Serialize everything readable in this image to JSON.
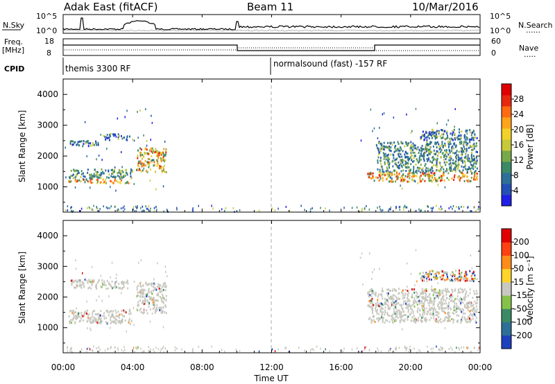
{
  "header": {
    "station": "Adak East (fitACF)",
    "beam": "Beam 11",
    "date": "10/Mar/2016"
  },
  "side_labels": {
    "nsky": "N.Sky",
    "freq": "Freq.",
    "mhz": "[MHz]",
    "cpid": "CPID",
    "nsearch": "N.Search",
    "nave": "Nave",
    "dots": "......",
    "nave_dots": "....."
  },
  "top_panel": {
    "left_ticks": [
      "10^5",
      "10^0"
    ],
    "right_ticks": [
      "10^5",
      "10^0"
    ]
  },
  "freq_panel": {
    "left_ticks": [
      "18",
      "8"
    ],
    "right_ticks": [
      "60",
      "0"
    ]
  },
  "cpid_panel": {
    "program1": "themis 3300 RF",
    "program2": "normalsound (fast) -157 RF"
  },
  "x_axis": {
    "label": "Time UT",
    "ticks": [
      "00:00",
      "04:00",
      "08:00",
      "12:00",
      "16:00",
      "20:00",
      "00:00"
    ]
  },
  "power_panel": {
    "ylabel": "Slant Range [km]",
    "yticks": [
      "4000",
      "3000",
      "2000",
      "1000"
    ],
    "colorbar_title": "Power [dB]",
    "colorbar_ticks": [
      "28",
      "24",
      "20",
      "16",
      "12",
      "8",
      "4"
    ],
    "colors": [
      "#1f1fe6",
      "#244fb7",
      "#2e6f97",
      "#3b8a66",
      "#78a84a",
      "#c7c83a",
      "#f2d12a",
      "#ffa41a",
      "#ff6a12",
      "#e8280e",
      "#e00000"
    ]
  },
  "velocity_panel": {
    "ylabel": "Slant Range [km]",
    "yticks": [
      "4000",
      "3000",
      "2000",
      "1000"
    ],
    "colorbar_title": "Velocity [m s⁻¹]",
    "colorbar_ticks": [
      "200",
      "100",
      "50",
      "15",
      "-15",
      "-50",
      "-100",
      "-200"
    ],
    "colors": [
      "#1f3fbf",
      "#2e6f97",
      "#3b8a66",
      "#86c24a",
      "#c8c8c0",
      "#ffd42a",
      "#ff8c1a",
      "#ff4010",
      "#e00000"
    ]
  },
  "chart_data": {
    "type": "heatmap",
    "x_range_hours": [
      0,
      24
    ],
    "y_range_km": [
      180,
      4500
    ],
    "power_regions": [
      {
        "x": [
          0.3,
          3.8
        ],
        "y": [
          1150,
          1300
        ],
        "level": "high"
      },
      {
        "x": [
          0.3,
          4.0
        ],
        "y": [
          1300,
          1600
        ],
        "level": "mid"
      },
      {
        "x": [
          0.3,
          2.0
        ],
        "y": [
          2350,
          2550
        ],
        "level": "low"
      },
      {
        "x": [
          2.3,
          3.8
        ],
        "y": [
          2550,
          2750
        ],
        "level": "low"
      },
      {
        "x": [
          4.2,
          5.9
        ],
        "y": [
          1500,
          2300
        ],
        "level": "high"
      },
      {
        "x": [
          17.5,
          23.8
        ],
        "y": [
          1200,
          1500
        ],
        "level": "high"
      },
      {
        "x": [
          18.0,
          23.8
        ],
        "y": [
          1500,
          2500
        ],
        "level": "mid"
      },
      {
        "x": [
          20.5,
          23.8
        ],
        "y": [
          2550,
          2900
        ],
        "level": "low"
      }
    ],
    "velocity_regions": [
      {
        "x": [
          0.3,
          3.9
        ],
        "y": [
          1150,
          1600
        ],
        "level": "ground"
      },
      {
        "x": [
          0.3,
          3.7
        ],
        "y": [
          2300,
          2600
        ],
        "level": "ground"
      },
      {
        "x": [
          4.2,
          5.9
        ],
        "y": [
          1500,
          2500
        ],
        "level": "ground"
      },
      {
        "x": [
          17.5,
          23.8
        ],
        "y": [
          1200,
          2300
        ],
        "level": "ground"
      },
      {
        "x": [
          20.5,
          23.8
        ],
        "y": [
          2550,
          2900
        ],
        "level": "mixed"
      }
    ]
  }
}
